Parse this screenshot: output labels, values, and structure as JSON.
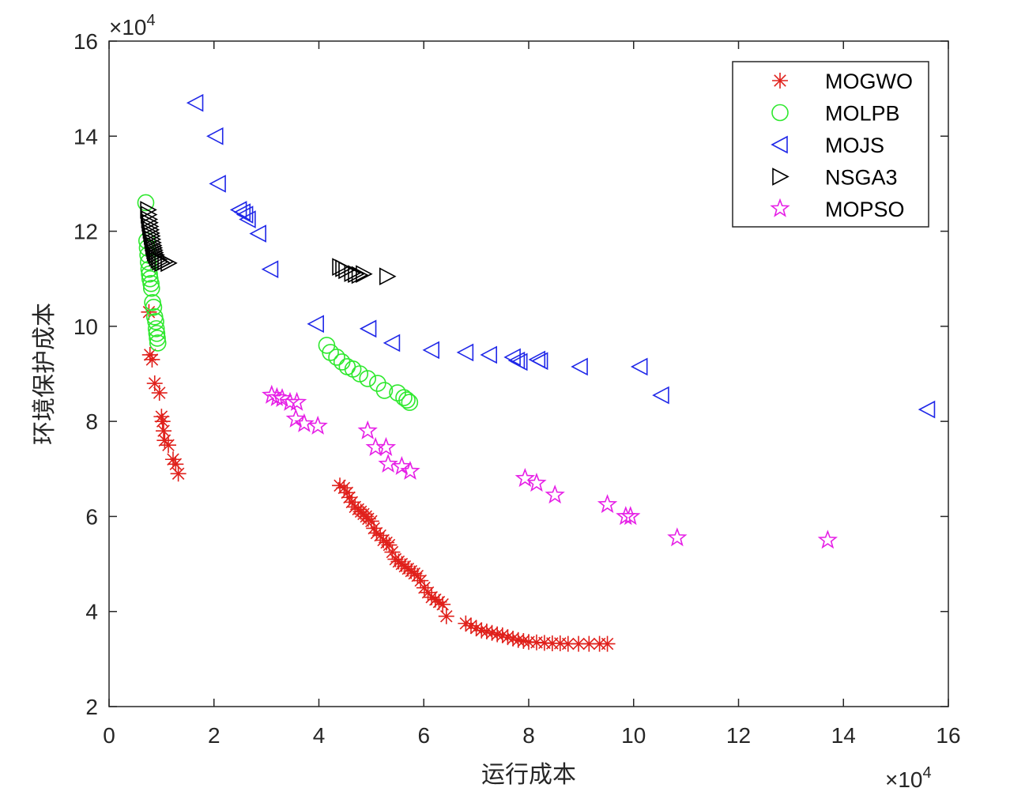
{
  "chart_data": {
    "type": "scatter",
    "xlabel": "运行成本",
    "ylabel": "环境保护成本",
    "x_exponent": {
      "times": "×10",
      "power": "4"
    },
    "y_exponent": {
      "times": "×10",
      "power": "4"
    },
    "xlim": [
      0,
      160000
    ],
    "ylim": [
      20000,
      160000
    ],
    "x_ticks": [
      0,
      20000,
      40000,
      60000,
      80000,
      100000,
      120000,
      140000,
      160000
    ],
    "x_tick_labels": [
      "0",
      "2",
      "4",
      "6",
      "8",
      "10",
      "12",
      "14",
      "16"
    ],
    "y_ticks": [
      20000,
      40000,
      60000,
      80000,
      100000,
      120000,
      140000,
      160000
    ],
    "y_tick_labels": [
      "2",
      "4",
      "6",
      "8",
      "10",
      "12",
      "14",
      "16"
    ],
    "grid": false,
    "legend_position": "top-right",
    "series": [
      {
        "name": "MOGWO",
        "marker": "asterisk",
        "color": "#e0201b",
        "points": [
          [
            7600,
            103000
          ],
          [
            7800,
            94000
          ],
          [
            8200,
            93000
          ],
          [
            8700,
            88000
          ],
          [
            9600,
            86000
          ],
          [
            10000,
            81000
          ],
          [
            10200,
            80000
          ],
          [
            10400,
            78000
          ],
          [
            10600,
            76000
          ],
          [
            11300,
            75000
          ],
          [
            12200,
            72000
          ],
          [
            12700,
            71000
          ],
          [
            13200,
            69000
          ],
          [
            44000,
            66500
          ],
          [
            44800,
            66000
          ],
          [
            45400,
            65000
          ],
          [
            45800,
            64000
          ],
          [
            46300,
            63000
          ],
          [
            46900,
            62000
          ],
          [
            47500,
            61500
          ],
          [
            48000,
            61000
          ],
          [
            48500,
            60500
          ],
          [
            49000,
            60000
          ],
          [
            49400,
            59500
          ],
          [
            50000,
            59000
          ],
          [
            50500,
            57500
          ],
          [
            51000,
            56500
          ],
          [
            51700,
            56000
          ],
          [
            52300,
            55000
          ],
          [
            52900,
            54500
          ],
          [
            53400,
            54000
          ],
          [
            54000,
            52500
          ],
          [
            54600,
            51000
          ],
          [
            55200,
            50500
          ],
          [
            55800,
            50000
          ],
          [
            56400,
            49500
          ],
          [
            57000,
            49000
          ],
          [
            57600,
            48500
          ],
          [
            58200,
            48000
          ],
          [
            58800,
            47500
          ],
          [
            59400,
            46500
          ],
          [
            60100,
            45000
          ],
          [
            60800,
            44000
          ],
          [
            61500,
            43000
          ],
          [
            62200,
            42500
          ],
          [
            62900,
            42000
          ],
          [
            63600,
            41500
          ],
          [
            64300,
            39000
          ],
          [
            68000,
            37500
          ],
          [
            69000,
            37000
          ],
          [
            70000,
            36500
          ],
          [
            71000,
            36000
          ],
          [
            72000,
            35800
          ],
          [
            73000,
            35500
          ],
          [
            74000,
            35200
          ],
          [
            75000,
            35000
          ],
          [
            76000,
            34600
          ],
          [
            77000,
            34300
          ],
          [
            78000,
            34000
          ],
          [
            79000,
            33800
          ],
          [
            80000,
            33600
          ],
          [
            81500,
            33500
          ],
          [
            83000,
            33400
          ],
          [
            84500,
            33300
          ],
          [
            86000,
            33300
          ],
          [
            87500,
            33200
          ],
          [
            89500,
            33200
          ],
          [
            91500,
            33200
          ],
          [
            93500,
            33200
          ],
          [
            95000,
            33200
          ]
        ]
      },
      {
        "name": "MOLPB",
        "marker": "circle",
        "color": "#2ee82e",
        "points": [
          [
            7000,
            126000
          ],
          [
            7200,
            118000
          ],
          [
            7300,
            116500
          ],
          [
            7400,
            115000
          ],
          [
            7500,
            113500
          ],
          [
            7600,
            112000
          ],
          [
            7700,
            111000
          ],
          [
            7800,
            110000
          ],
          [
            8000,
            109000
          ],
          [
            8100,
            108000
          ],
          [
            8300,
            105000
          ],
          [
            8500,
            104000
          ],
          [
            8700,
            102000
          ],
          [
            8900,
            101000
          ],
          [
            9000,
            99500
          ],
          [
            9100,
            98500
          ],
          [
            9200,
            97500
          ],
          [
            9300,
            96500
          ],
          [
            41500,
            96000
          ],
          [
            42200,
            94500
          ],
          [
            43400,
            93500
          ],
          [
            44400,
            92500
          ],
          [
            45400,
            91500
          ],
          [
            46500,
            91000
          ],
          [
            47800,
            90000
          ],
          [
            49300,
            89000
          ],
          [
            51200,
            88000
          ],
          [
            52500,
            86500
          ],
          [
            55000,
            86000
          ],
          [
            56200,
            85000
          ],
          [
            56800,
            84500
          ],
          [
            57300,
            84000
          ]
        ]
      },
      {
        "name": "MOJS",
        "marker": "triangle-left",
        "color": "#1f27e8",
        "points": [
          [
            16500,
            147000
          ],
          [
            20300,
            140000
          ],
          [
            20800,
            130000
          ],
          [
            24800,
            124500
          ],
          [
            25500,
            124000
          ],
          [
            26000,
            123500
          ],
          [
            26500,
            122500
          ],
          [
            28500,
            119500
          ],
          [
            30800,
            112000
          ],
          [
            39500,
            100500
          ],
          [
            49500,
            99500
          ],
          [
            54000,
            96500
          ],
          [
            61500,
            95000
          ],
          [
            68000,
            94500
          ],
          [
            72500,
            94000
          ],
          [
            77000,
            93500
          ],
          [
            77800,
            92800
          ],
          [
            78300,
            92500
          ],
          [
            81700,
            93000
          ],
          [
            82200,
            92700
          ],
          [
            89800,
            91500
          ],
          [
            101200,
            91500
          ],
          [
            105300,
            85500
          ],
          [
            156000,
            82500
          ]
        ]
      },
      {
        "name": "NSGA3",
        "marker": "triangle-right",
        "color": "#000000",
        "points": [
          [
            7400,
            124500
          ],
          [
            7500,
            123500
          ],
          [
            7600,
            122500
          ],
          [
            7700,
            121800
          ],
          [
            7800,
            121000
          ],
          [
            7900,
            120300
          ],
          [
            8000,
            119600
          ],
          [
            8100,
            119000
          ],
          [
            8200,
            118300
          ],
          [
            8300,
            117600
          ],
          [
            8400,
            117000
          ],
          [
            8500,
            116500
          ],
          [
            8600,
            116000
          ],
          [
            8700,
            115500
          ],
          [
            8900,
            115000
          ],
          [
            9100,
            114500
          ],
          [
            9400,
            114000
          ],
          [
            9700,
            113600
          ],
          [
            10100,
            113300
          ],
          [
            10700,
            113600
          ],
          [
            11300,
            113300
          ],
          [
            44000,
            112500
          ],
          [
            44600,
            112200
          ],
          [
            45200,
            111800
          ],
          [
            46300,
            111200
          ],
          [
            47000,
            111000
          ],
          [
            47700,
            110800
          ],
          [
            48500,
            111000
          ],
          [
            53000,
            110500
          ]
        ]
      },
      {
        "name": "MOPSO",
        "marker": "star",
        "color": "#e61fe6",
        "points": [
          [
            31000,
            85500
          ],
          [
            32000,
            85000
          ],
          [
            33000,
            84800
          ],
          [
            34500,
            84000
          ],
          [
            35800,
            84000
          ],
          [
            35600,
            80500
          ],
          [
            37200,
            79500
          ],
          [
            39800,
            79000
          ],
          [
            49300,
            78000
          ],
          [
            50800,
            74500
          ],
          [
            52800,
            74500
          ],
          [
            53200,
            71000
          ],
          [
            55800,
            70500
          ],
          [
            57400,
            69500
          ],
          [
            79300,
            68000
          ],
          [
            81500,
            67000
          ],
          [
            85000,
            64500
          ],
          [
            95000,
            62500
          ],
          [
            98500,
            60000
          ],
          [
            99400,
            60000
          ],
          [
            108300,
            55500
          ],
          [
            137000,
            55000
          ]
        ]
      }
    ]
  }
}
